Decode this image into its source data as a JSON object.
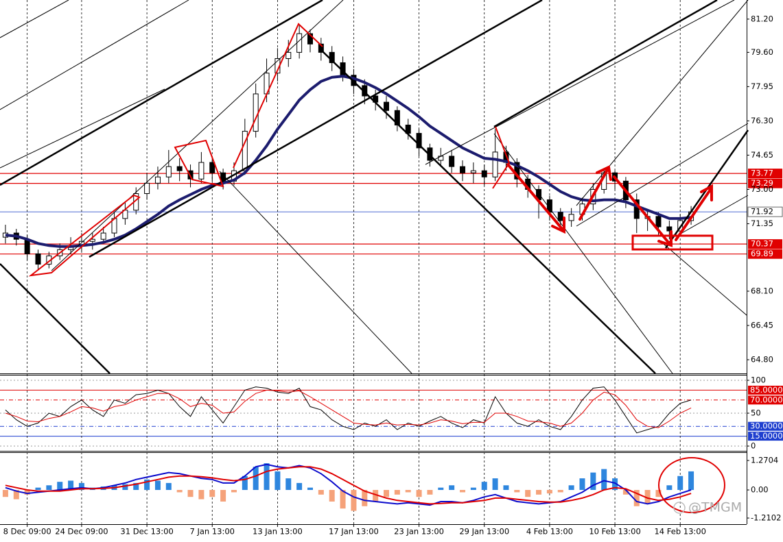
{
  "chart_data": [
    {
      "type": "candlestick",
      "open": [
        70.7,
        70.9,
        70.6,
        69.9,
        69.4,
        69.8,
        70.1,
        70.3,
        70.5,
        70.6,
        70.9,
        71.6,
        72.0,
        72.8,
        73.3,
        73.6,
        74.1,
        73.9,
        73.5,
        74.3,
        73.8,
        73.4,
        73.9,
        75.8,
        77.6,
        78.6,
        79.3,
        79.6,
        80.5,
        80.0,
        79.6,
        79.1,
        78.5,
        78.0,
        77.5,
        77.2,
        76.8,
        76.1,
        75.7,
        75.0,
        74.4,
        74.6,
        74.1,
        73.8,
        73.9,
        73.6,
        74.8,
        74.3,
        73.5,
        73.0,
        72.5,
        71.9,
        71.5,
        71.8,
        72.3,
        73.0,
        73.8,
        73.4,
        72.5,
        71.6,
        71.7,
        71.2,
        71.0,
        71.5
      ],
      "high": [
        71.3,
        71.1,
        70.8,
        70.1,
        70.0,
        70.4,
        70.7,
        70.9,
        70.9,
        71.2,
        71.9,
        72.4,
        73.1,
        73.8,
        74.1,
        74.9,
        74.5,
        74.2,
        74.8,
        74.6,
        74.0,
        74.3,
        76.4,
        78.1,
        79.3,
        79.8,
        80.2,
        80.9,
        80.7,
        80.3,
        79.9,
        79.4,
        78.8,
        78.3,
        77.8,
        77.5,
        77.0,
        76.4,
        75.9,
        75.2,
        75.0,
        74.9,
        74.4,
        74.3,
        74.2,
        75.9,
        75.1,
        74.5,
        73.7,
        73.2,
        72.7,
        72.1,
        72.1,
        72.6,
        73.3,
        74.0,
        73.9,
        73.6,
        72.8,
        72.0,
        71.9,
        71.5,
        71.8,
        72.2
      ],
      "low": [
        70.4,
        70.3,
        69.6,
        69.1,
        69.2,
        69.6,
        69.9,
        70.0,
        70.1,
        70.4,
        70.7,
        71.3,
        71.8,
        72.5,
        73.0,
        73.3,
        73.4,
        73.1,
        73.3,
        73.4,
        73.0,
        73.2,
        73.7,
        75.5,
        77.2,
        78.2,
        78.9,
        79.3,
        79.6,
        79.2,
        78.7,
        78.2,
        77.6,
        77.1,
        76.8,
        76.4,
        75.8,
        75.4,
        74.6,
        74.1,
        74.1,
        73.8,
        73.4,
        73.3,
        73.2,
        73.4,
        73.9,
        73.1,
        72.6,
        71.6,
        71.5,
        71.1,
        71.2,
        71.5,
        72.0,
        72.8,
        73.0,
        72.1,
        70.9,
        71.0,
        70.8,
        70.6,
        70.8,
        71.3
      ],
      "close": [
        70.9,
        70.6,
        69.9,
        69.4,
        69.8,
        70.1,
        70.3,
        70.5,
        70.6,
        70.9,
        71.6,
        72.0,
        72.8,
        73.3,
        73.6,
        74.1,
        73.9,
        73.5,
        74.3,
        73.8,
        73.4,
        73.9,
        75.8,
        77.6,
        78.6,
        79.3,
        79.6,
        80.5,
        80.0,
        79.6,
        79.1,
        78.5,
        78.0,
        77.5,
        77.2,
        76.8,
        76.1,
        75.7,
        75.0,
        74.4,
        74.6,
        74.1,
        73.8,
        73.9,
        73.6,
        74.8,
        74.3,
        73.5,
        73.0,
        72.5,
        71.9,
        71.5,
        71.8,
        72.3,
        73.0,
        73.8,
        73.4,
        72.5,
        71.6,
        71.7,
        71.2,
        71.0,
        71.5,
        71.92
      ],
      "up_color": "#ffffff",
      "down_color": "#000000",
      "ma": {
        "color": "#1c1c6e",
        "values": [
          70.8,
          70.75,
          70.6,
          70.4,
          70.3,
          70.25,
          70.25,
          70.3,
          70.35,
          70.45,
          70.6,
          70.8,
          71.1,
          71.45,
          71.8,
          72.2,
          72.5,
          72.75,
          73.0,
          73.2,
          73.3,
          73.45,
          73.8,
          74.4,
          75.1,
          75.9,
          76.6,
          77.3,
          77.8,
          78.2,
          78.4,
          78.45,
          78.35,
          78.15,
          77.9,
          77.6,
          77.25,
          76.9,
          76.5,
          76.05,
          75.7,
          75.35,
          75.0,
          74.75,
          74.5,
          74.45,
          74.35,
          74.15,
          73.9,
          73.6,
          73.25,
          72.9,
          72.65,
          72.5,
          72.45,
          72.5,
          72.5,
          72.4,
          72.2,
          72.0,
          71.8,
          71.6,
          71.6,
          71.65
        ]
      },
      "ylim": [
        64.14,
        82.12
      ],
      "yticks": [
        {
          "value": 81.2,
          "label": "81.20"
        },
        {
          "value": 79.6,
          "label": "79.60"
        },
        77.95,
        {
          "value": 76.3,
          "label": "76.30"
        },
        74.65,
        {
          "value": 73,
          "label": "73.00"
        },
        71.35,
        {
          "value": 68.1,
          "label": "68.10"
        },
        66.45,
        {
          "value": 64.8,
          "label": "64.80"
        }
      ],
      "levels": [
        73.77,
        73.29,
        70.37,
        69.89
      ],
      "level_color": "#e00000",
      "current_price": 71.92,
      "current_color": "#3355cc"
    },
    {
      "type": "line",
      "ylim": [
        -6.25,
        107.3
      ],
      "yticks": [
        100,
        50,
        0
      ],
      "levels": [
        {
          "value": 85,
          "label": "85.0000",
          "color": "#e00000",
          "style": "solid"
        },
        {
          "value": 70,
          "label": "70.0000",
          "color": "#e00000",
          "style": "dashdot"
        },
        {
          "value": 30,
          "label": "30.0000",
          "color": "#1f3fcf",
          "style": "dashdot"
        },
        {
          "value": 15,
          "label": "15.0000",
          "color": "#1f3fcf",
          "style": "solid"
        }
      ],
      "series": [
        {
          "color": "#000000",
          "values": [
            55,
            40,
            30,
            35,
            50,
            45,
            60,
            70,
            55,
            45,
            70,
            65,
            78,
            80,
            85,
            80,
            60,
            45,
            75,
            55,
            35,
            60,
            85,
            90,
            88,
            82,
            80,
            88,
            60,
            55,
            40,
            30,
            25,
            35,
            30,
            40,
            25,
            35,
            30,
            38,
            45,
            35,
            28,
            40,
            35,
            75,
            50,
            35,
            30,
            40,
            30,
            25,
            45,
            70,
            88,
            90,
            70,
            45,
            20,
            25,
            30,
            50,
            65,
            70
          ]
        },
        {
          "color": "#e00000",
          "values": [
            50,
            45,
            38,
            37,
            42,
            45,
            52,
            60,
            58,
            53,
            60,
            63,
            70,
            75,
            80,
            80,
            72,
            60,
            65,
            62,
            50,
            52,
            68,
            80,
            85,
            84,
            82,
            84,
            75,
            65,
            55,
            45,
            35,
            33,
            32,
            35,
            32,
            33,
            32,
            35,
            40,
            38,
            34,
            36,
            36,
            50,
            50,
            45,
            38,
            37,
            35,
            30,
            35,
            50,
            70,
            82,
            78,
            62,
            40,
            30,
            28,
            38,
            50,
            58
          ]
        }
      ]
    },
    {
      "type": "bar",
      "categories": [
        null,
        null,
        "8 Dec 09:00",
        null,
        null,
        null,
        null,
        "24 Dec 09:00",
        null,
        null,
        null,
        null,
        null,
        "31 Dec 13:00",
        null,
        null,
        null,
        null,
        null,
        "7 Jan 13:00",
        null,
        null,
        null,
        null,
        null,
        "13 Jan 13:00",
        null,
        null,
        null,
        null,
        null,
        null,
        "17 Jan 13:00",
        null,
        null,
        null,
        null,
        null,
        "23 Jan 13:00",
        null,
        null,
        null,
        null,
        null,
        "29 Jan 13:00",
        null,
        null,
        null,
        null,
        null,
        "4 Feb 13:00",
        null,
        null,
        null,
        null,
        null,
        "10 Feb 13:00",
        null,
        null,
        null,
        null,
        null,
        "14 Feb 13:00",
        null
      ],
      "values": [
        -0.3,
        -0.4,
        -0.2,
        0.1,
        0.2,
        0.35,
        0.4,
        0.3,
        0.1,
        0.15,
        0.2,
        0.25,
        0.3,
        0.45,
        0.4,
        0.3,
        -0.1,
        -0.3,
        -0.4,
        -0.3,
        -0.5,
        -0.1,
        0.6,
        1.0,
        1.15,
        0.8,
        0.5,
        0.3,
        0.1,
        -0.2,
        -0.5,
        -0.8,
        -0.9,
        -0.7,
        -0.5,
        -0.3,
        -0.2,
        -0.1,
        -0.3,
        -0.2,
        0.1,
        0.2,
        -0.1,
        0.1,
        0.35,
        0.5,
        0.2,
        -0.1,
        -0.3,
        -0.2,
        -0.15,
        -0.1,
        0.2,
        0.5,
        0.75,
        0.9,
        0.5,
        -0.2,
        -0.7,
        -0.6,
        -0.3,
        0.2,
        0.6,
        0.8
      ],
      "up_color": "#2e86de",
      "down_color": "#f5a27a",
      "series": [
        {
          "color": "#0a0acc",
          "values": [
            0.1,
            -0.05,
            -0.15,
            -0.1,
            -0.05,
            0.0,
            0.05,
            0.1,
            0.05,
            0.1,
            0.2,
            0.3,
            0.45,
            0.55,
            0.65,
            0.75,
            0.7,
            0.6,
            0.5,
            0.45,
            0.3,
            0.3,
            0.6,
            1.0,
            1.1,
            1.0,
            0.95,
            1.05,
            0.95,
            0.7,
            0.35,
            -0.05,
            -0.3,
            -0.45,
            -0.5,
            -0.55,
            -0.6,
            -0.55,
            -0.6,
            -0.65,
            -0.5,
            -0.5,
            -0.55,
            -0.45,
            -0.3,
            -0.2,
            -0.35,
            -0.5,
            -0.55,
            -0.6,
            -0.55,
            -0.5,
            -0.3,
            -0.1,
            0.2,
            0.4,
            0.3,
            0.0,
            -0.5,
            -0.6,
            -0.5,
            -0.3,
            -0.15,
            0.0
          ]
        },
        {
          "color": "#e00000",
          "values": [
            0.2,
            0.1,
            0.0,
            -0.05,
            -0.05,
            -0.05,
            0.0,
            0.05,
            0.05,
            0.07,
            0.1,
            0.17,
            0.25,
            0.35,
            0.45,
            0.55,
            0.6,
            0.6,
            0.57,
            0.52,
            0.45,
            0.4,
            0.45,
            0.6,
            0.8,
            0.9,
            0.95,
            1.0,
            1.0,
            0.9,
            0.7,
            0.45,
            0.2,
            -0.05,
            -0.2,
            -0.35,
            -0.45,
            -0.5,
            -0.55,
            -0.6,
            -0.58,
            -0.55,
            -0.55,
            -0.5,
            -0.45,
            -0.35,
            -0.35,
            -0.4,
            -0.45,
            -0.5,
            -0.52,
            -0.52,
            -0.45,
            -0.35,
            -0.2,
            0.0,
            0.1,
            0.05,
            -0.15,
            -0.35,
            -0.45,
            -0.4,
            -0.3,
            -0.15
          ]
        }
      ],
      "ylim": [
        -1.475,
        1.5658
      ],
      "yticks": [
        1.2704,
        {
          "value": 0,
          "label": "0.00"
        },
        -1.2102
      ],
      "watermark": "@TMGM"
    }
  ]
}
